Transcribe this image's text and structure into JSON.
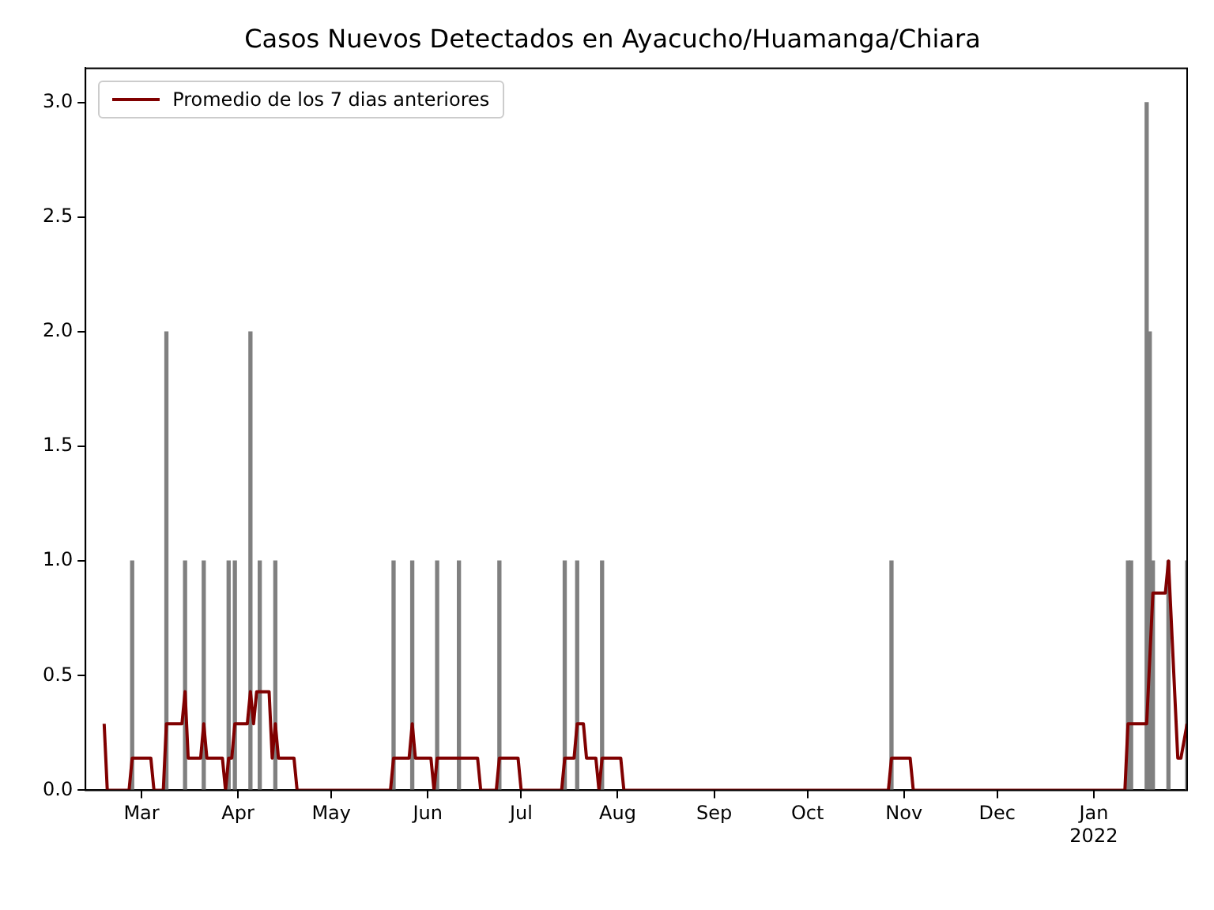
{
  "chart_data": {
    "type": "bar",
    "title": "Casos Nuevos Detectados en Ayacucho/Huamanga/Chiara",
    "series": [
      {
        "color": "#808080",
        "x": [
          "2021-02-26",
          "2021-03-09",
          "2021-03-15",
          "2021-03-21",
          "2021-03-29",
          "2021-03-31",
          "2021-04-05",
          "2021-04-08",
          "2021-04-13",
          "2021-05-21",
          "2021-05-27",
          "2021-06-04",
          "2021-06-11",
          "2021-06-24",
          "2021-07-15",
          "2021-07-19",
          "2021-07-27",
          "2021-10-28",
          "2022-01-12",
          "2022-01-13",
          "2022-01-18",
          "2022-01-19",
          "2022-01-20",
          "2022-01-25",
          "2022-01-31"
        ],
        "values": [
          1,
          2,
          1,
          1,
          1,
          1,
          2,
          1,
          1,
          1,
          1,
          1,
          1,
          1,
          1,
          1,
          1,
          1,
          1,
          1,
          3,
          2,
          1,
          1,
          1
        ]
      },
      {
        "type": "line",
        "name": "Promedio de los 7 dias anteriores",
        "color": "#800000",
        "x": [
          "2021-02-17",
          "2021-02-18",
          "2021-02-25",
          "2021-02-26",
          "2021-03-04",
          "2021-03-05",
          "2021-03-08",
          "2021-03-09",
          "2021-03-14",
          "2021-03-15",
          "2021-03-16",
          "2021-03-20",
          "2021-03-21",
          "2021-03-22",
          "2021-03-27",
          "2021-03-28",
          "2021-03-29",
          "2021-03-30",
          "2021-03-31",
          "2021-04-04",
          "2021-04-05",
          "2021-04-06",
          "2021-04-07",
          "2021-04-11",
          "2021-04-12",
          "2021-04-13",
          "2021-04-14",
          "2021-04-19",
          "2021-04-20",
          "2021-05-20",
          "2021-05-21",
          "2021-05-26",
          "2021-05-27",
          "2021-05-28",
          "2021-06-02",
          "2021-06-03",
          "2021-06-04",
          "2021-06-17",
          "2021-06-18",
          "2021-06-23",
          "2021-06-24",
          "2021-06-30",
          "2021-07-01",
          "2021-07-14",
          "2021-07-15",
          "2021-07-18",
          "2021-07-19",
          "2021-07-21",
          "2021-07-22",
          "2021-07-25",
          "2021-07-26",
          "2021-07-27",
          "2021-08-02",
          "2021-08-03",
          "2021-10-27",
          "2021-10-28",
          "2021-11-03",
          "2021-11-04",
          "2022-01-11",
          "2022-01-12",
          "2022-01-18",
          "2022-01-20",
          "2022-01-24",
          "2022-01-25",
          "2022-01-28",
          "2022-01-29",
          "2022-01-31"
        ],
        "values": [
          0.29,
          0,
          0,
          0.14,
          0.14,
          0,
          0,
          0.29,
          0.29,
          0.43,
          0.14,
          0.14,
          0.29,
          0.14,
          0.14,
          0,
          0.14,
          0.14,
          0.29,
          0.29,
          0.43,
          0.29,
          0.43,
          0.43,
          0.14,
          0.29,
          0.14,
          0.14,
          0,
          0,
          0.14,
          0.14,
          0.29,
          0.14,
          0.14,
          0,
          0.14,
          0.14,
          0,
          0,
          0.14,
          0.14,
          0,
          0,
          0.14,
          0.14,
          0.29,
          0.29,
          0.14,
          0.14,
          0,
          0.14,
          0.14,
          0,
          0,
          0.14,
          0.14,
          0,
          0,
          0.29,
          0.29,
          0.86,
          0.86,
          1.0,
          0.14,
          0.14,
          0.29
        ],
        "marker": "none",
        "line_style": "solid"
      }
    ],
    "xlim": [
      "2021-02-11",
      "2022-01-31"
    ],
    "xticks": [
      {
        "value": "2021-03-01",
        "label": "Mar"
      },
      {
        "value": "2021-04-01",
        "label": "Apr"
      },
      {
        "value": "2021-05-01",
        "label": "May"
      },
      {
        "value": "2021-06-01",
        "label": "Jun"
      },
      {
        "value": "2021-07-01",
        "label": "Jul"
      },
      {
        "value": "2021-08-01",
        "label": "Aug"
      },
      {
        "value": "2021-09-01",
        "label": "Sep"
      },
      {
        "value": "2021-10-01",
        "label": "Oct"
      },
      {
        "value": "2021-11-01",
        "label": "Nov"
      },
      {
        "value": "2021-12-01",
        "label": "Dec"
      },
      {
        "value": "2022-01-01",
        "label": "Jan\n2022"
      }
    ],
    "ylim": [
      0,
      3.15
    ],
    "yticks": [
      {
        "value": 0,
        "label": "0.0"
      },
      {
        "value": 0.5,
        "label": "0.5"
      },
      {
        "value": 1,
        "label": "1.0"
      },
      {
        "value": 1.5,
        "label": "1.5"
      },
      {
        "value": 2,
        "label": "2.0"
      },
      {
        "value": 2.5,
        "label": "2.5"
      },
      {
        "value": 3,
        "label": "3.0"
      }
    ],
    "grid": false,
    "legend": "top left"
  }
}
